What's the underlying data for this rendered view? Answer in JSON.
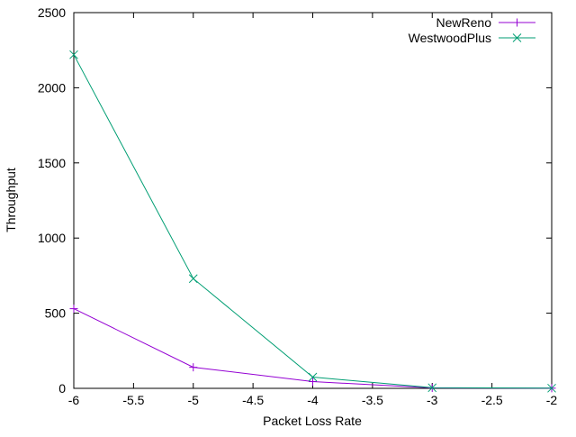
{
  "chart_data": {
    "type": "line",
    "xlabel": "Packet Loss Rate",
    "ylabel": "Throughput",
    "xlim": [
      -6,
      -2
    ],
    "ylim": [
      0,
      2500
    ],
    "x_ticks": [
      -6,
      -5.5,
      -5,
      -4.5,
      -4,
      -3.5,
      -3,
      -2.5,
      -2
    ],
    "x_tick_labels": [
      "-6",
      "-5.5",
      "-5",
      "-4.5",
      "-4",
      "-3.5",
      "-3",
      "-2.5",
      "-2"
    ],
    "y_ticks": [
      0,
      500,
      1000,
      1500,
      2000,
      2500
    ],
    "y_tick_labels": [
      "0",
      "500",
      "1000",
      "1500",
      "2000",
      "2500"
    ],
    "grid": false,
    "legend_position": "top-right",
    "series": [
      {
        "name": "NewReno",
        "color": "#9400d3",
        "marker": "plus",
        "x": [
          -6,
          -5,
          -4,
          -3,
          -2
        ],
        "y": [
          530,
          140,
          45,
          3,
          1
        ]
      },
      {
        "name": "WestwoodPlus",
        "color": "#009e73",
        "marker": "cross",
        "x": [
          -6,
          -5,
          -4,
          -3,
          -2
        ],
        "y": [
          2220,
          730,
          75,
          4,
          1
        ]
      }
    ]
  }
}
